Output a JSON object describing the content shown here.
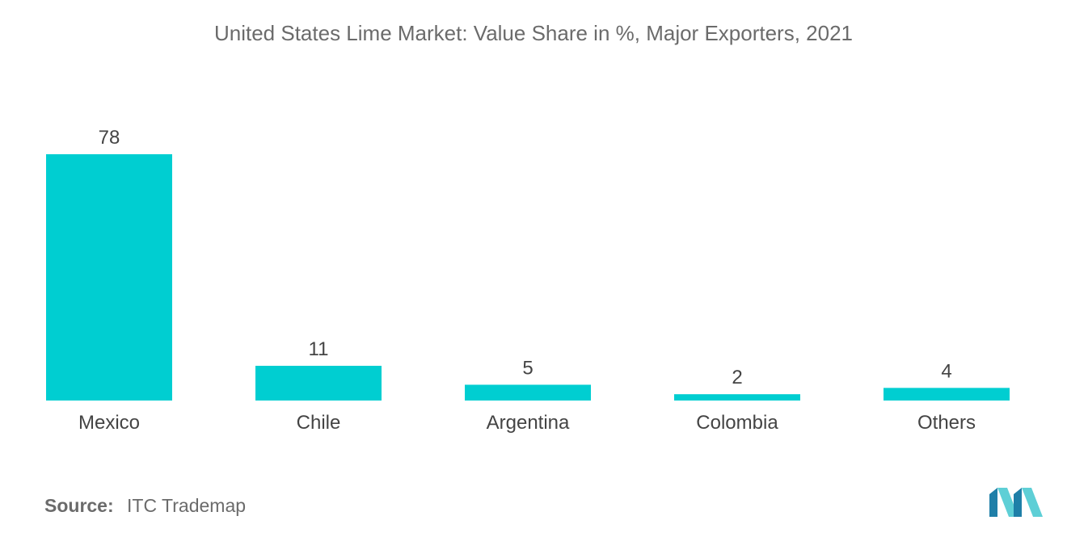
{
  "chart_data": {
    "type": "bar",
    "title": "United States Lime Market: Value Share in %, Major Exporters, 2021",
    "xlabel": "",
    "ylabel": "",
    "categories": [
      "Mexico",
      "Chile",
      "Argentina",
      "Colombia",
      "Others"
    ],
    "values": [
      78,
      11,
      5,
      2,
      4
    ],
    "ylim": [
      0,
      78
    ],
    "grid": false,
    "bar_color": "#00CED1"
  },
  "source": {
    "label": "Source:",
    "text": "ITC Trademap"
  },
  "logo": {
    "icon": "mordor-intelligence-logo",
    "color_light": "#5ECFD6",
    "color_dark": "#1F7FA8"
  }
}
